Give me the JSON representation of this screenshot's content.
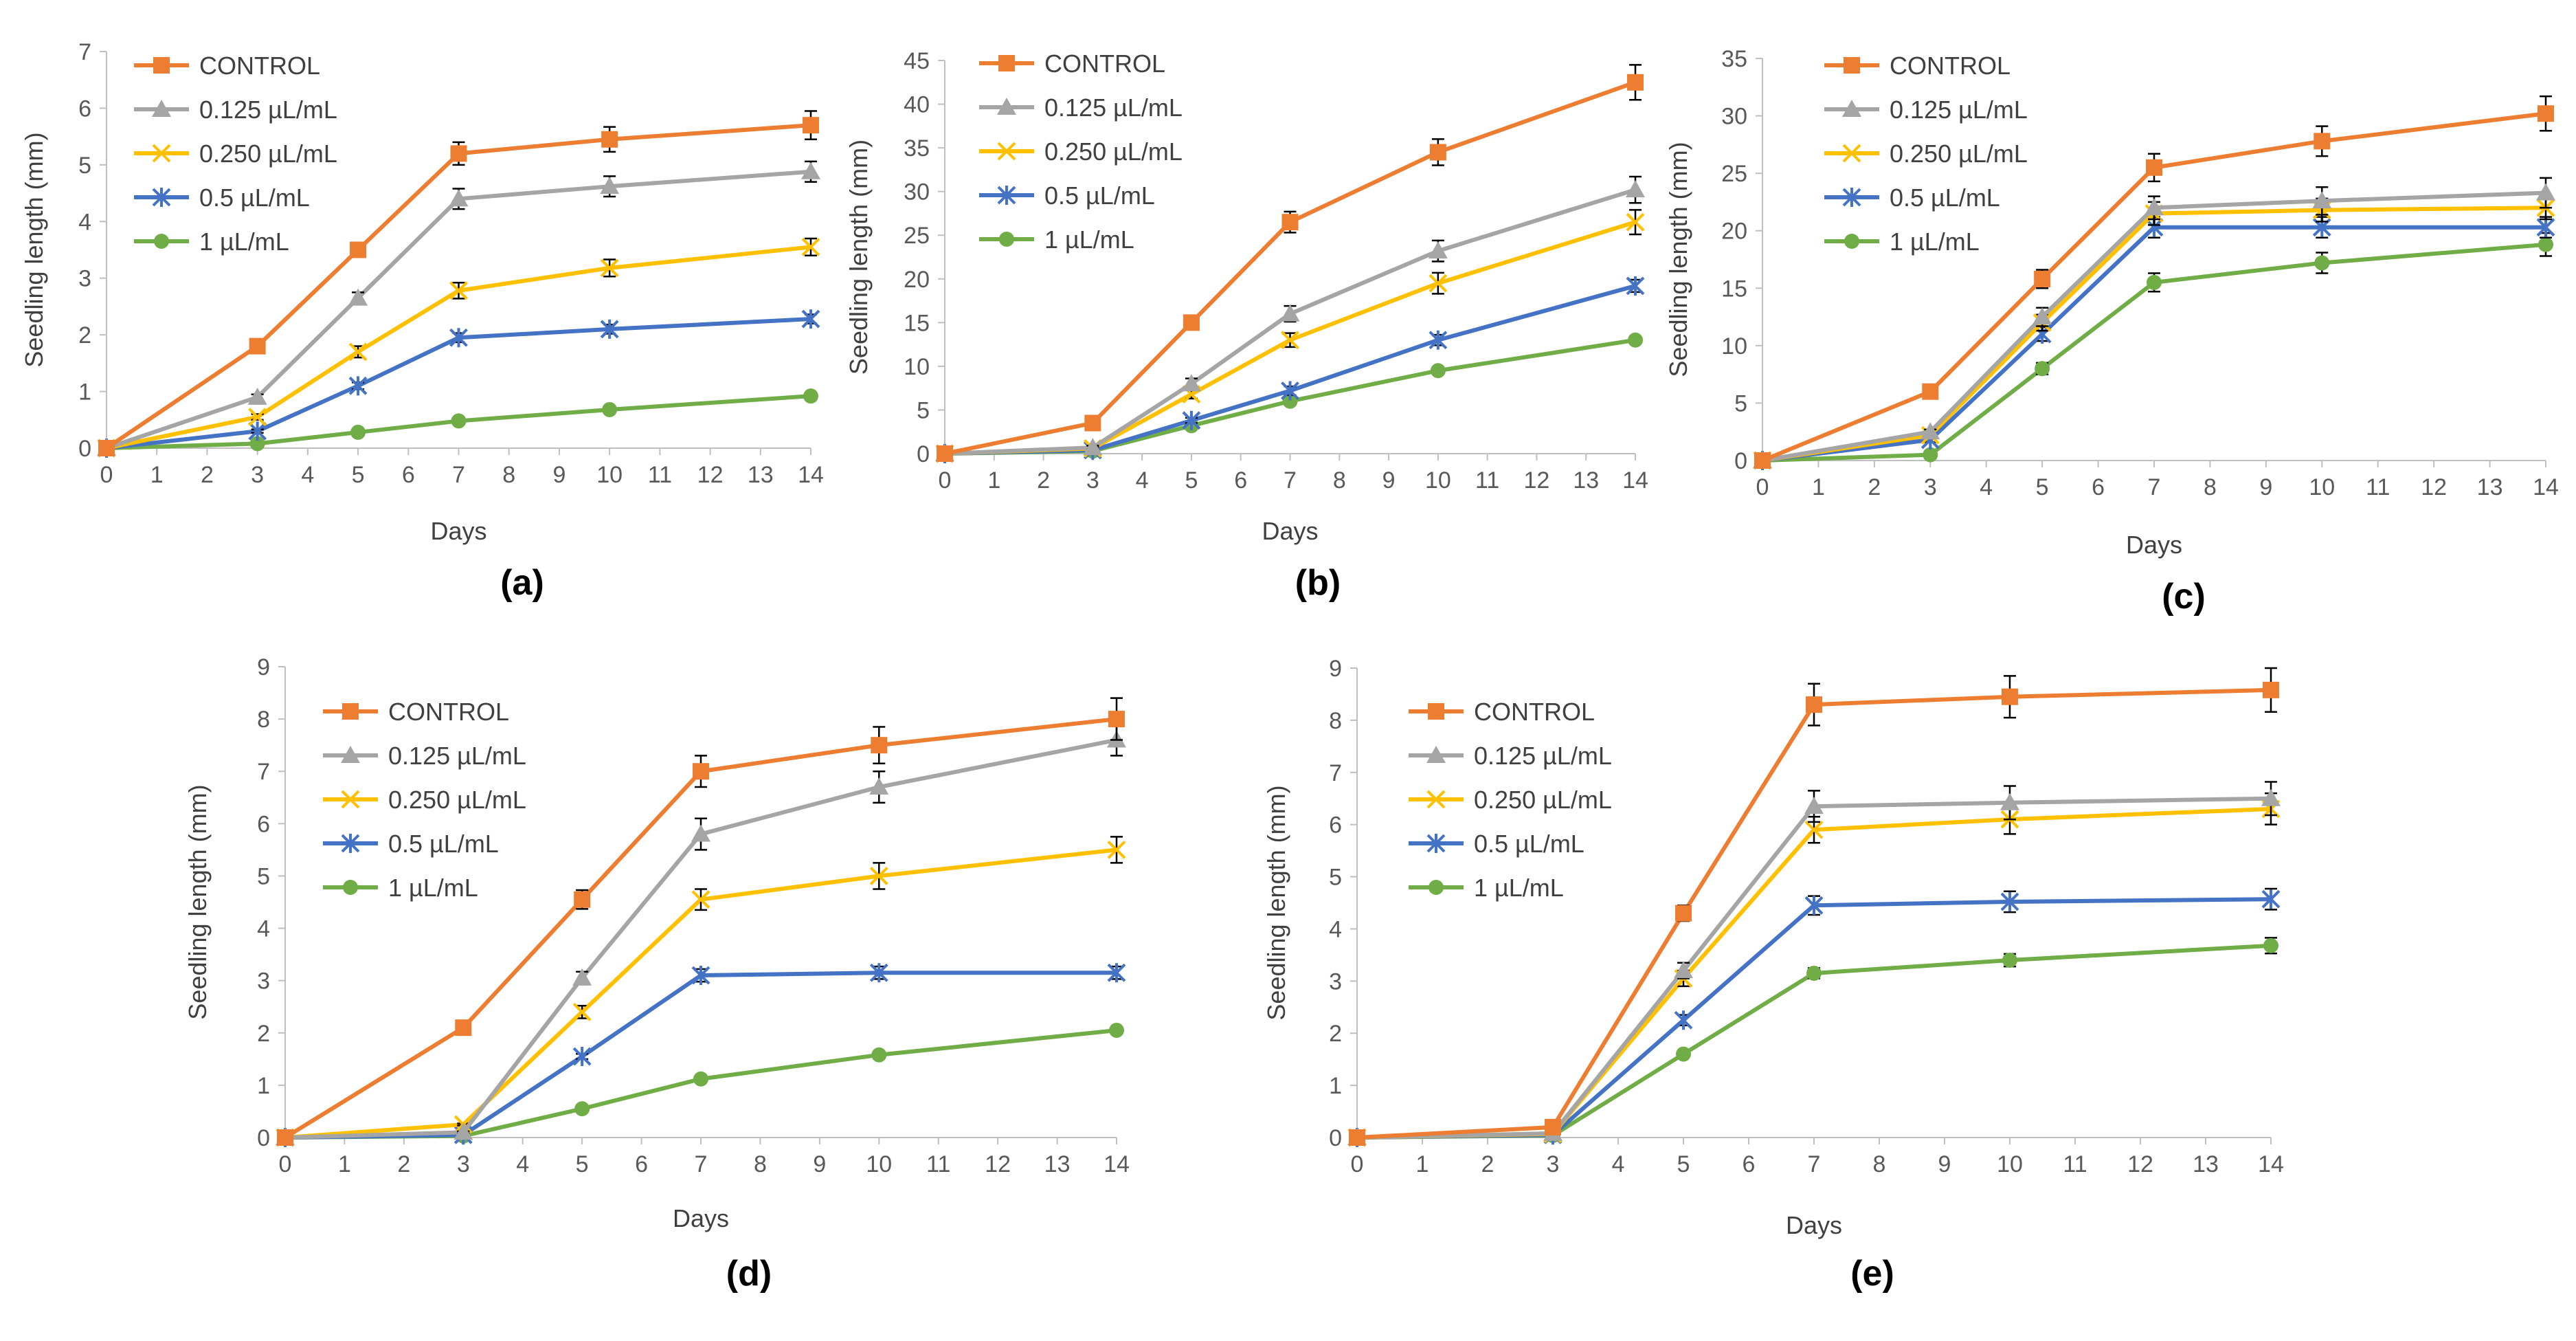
{
  "colors": {
    "control": "#ED7D31",
    "c0125": "#A5A5A5",
    "c0250": "#FFC000",
    "c05": "#4472C4",
    "c1": "#70AD47",
    "axis": "#BFBFBF",
    "text": "#595959"
  },
  "chart_data": [
    {
      "panel_label": "(a)",
      "type": "line",
      "xlabel": "Days",
      "ylabel": "Seedling length (mm)",
      "x_ticks": [
        0,
        1,
        2,
        3,
        4,
        5,
        6,
        7,
        8,
        9,
        10,
        11,
        12,
        13,
        14
      ],
      "y_ticks": [
        0,
        1,
        2,
        3,
        4,
        5,
        6,
        7
      ],
      "ylim": [
        0,
        7
      ],
      "x": [
        0,
        3,
        5,
        7,
        10,
        14
      ],
      "series": [
        {
          "name": "CONTROL",
          "marker": "square",
          "values": [
            0,
            1.8,
            3.5,
            5.2,
            5.45,
            5.7
          ],
          "err": [
            0,
            0.05,
            0.12,
            0.2,
            0.22,
            0.25
          ]
        },
        {
          "name": "0.125 µL/mL",
          "marker": "triangle",
          "values": [
            0,
            0.9,
            2.65,
            4.4,
            4.62,
            4.88
          ],
          "err": [
            0,
            0.05,
            0.1,
            0.18,
            0.18,
            0.18
          ]
        },
        {
          "name": "0.250 µL/mL",
          "marker": "x",
          "values": [
            0,
            0.55,
            1.7,
            2.78,
            3.18,
            3.55
          ],
          "err": [
            0,
            0.05,
            0.1,
            0.14,
            0.15,
            0.15
          ]
        },
        {
          "name": "0.5 µL/mL",
          "marker": "star",
          "values": [
            0,
            0.3,
            1.1,
            1.95,
            2.1,
            2.28
          ],
          "err": [
            0,
            0.03,
            0.06,
            0.08,
            0.08,
            0.08
          ]
        },
        {
          "name": "1 µL/mL",
          "marker": "circle",
          "values": [
            0,
            0.08,
            0.28,
            0.48,
            0.68,
            0.92
          ],
          "err": [
            0,
            0.02,
            0.03,
            0.04,
            0.04,
            0.04
          ]
        }
      ]
    },
    {
      "panel_label": "(b)",
      "type": "line",
      "xlabel": "Days",
      "ylabel": "Seedling length (mm)",
      "x_ticks": [
        0,
        1,
        2,
        3,
        4,
        5,
        6,
        7,
        8,
        9,
        10,
        11,
        12,
        13,
        14
      ],
      "y_ticks": [
        0,
        5,
        10,
        15,
        20,
        25,
        30,
        35,
        40,
        45
      ],
      "ylim": [
        0,
        45
      ],
      "x": [
        0,
        3,
        5,
        7,
        10,
        14
      ],
      "series": [
        {
          "name": "CONTROL",
          "marker": "square",
          "values": [
            0,
            3.5,
            15,
            26.5,
            34.5,
            42.5
          ],
          "err": [
            0,
            0.4,
            0.6,
            1.2,
            1.5,
            2.0
          ]
        },
        {
          "name": "0.125 µL/mL",
          "marker": "triangle",
          "values": [
            0,
            0.7,
            8,
            16,
            23.2,
            30.2
          ],
          "err": [
            0,
            0.2,
            0.6,
            0.9,
            1.2,
            1.5
          ]
        },
        {
          "name": "0.250 µL/mL",
          "marker": "x",
          "values": [
            0,
            0.6,
            6.8,
            13,
            19.5,
            26.5
          ],
          "err": [
            0,
            0.2,
            0.5,
            0.8,
            1.2,
            1.4
          ]
        },
        {
          "name": "0.5 µL/mL",
          "marker": "star",
          "values": [
            0,
            0.4,
            3.8,
            7.2,
            13,
            19.2
          ],
          "err": [
            0,
            0.1,
            0.3,
            0.5,
            0.6,
            0.7
          ]
        },
        {
          "name": "1 µL/mL",
          "marker": "circle",
          "values": [
            0,
            0.3,
            3.2,
            6,
            9.5,
            13
          ],
          "err": [
            0,
            0.1,
            0.2,
            0.3,
            0.4,
            0.4
          ]
        }
      ]
    },
    {
      "panel_label": "(c)",
      "type": "line",
      "xlabel": "Days",
      "ylabel": "Seedling length (mm)",
      "x_ticks": [
        0,
        1,
        2,
        3,
        4,
        5,
        6,
        7,
        8,
        9,
        10,
        11,
        12,
        13,
        14
      ],
      "y_ticks": [
        0,
        5,
        10,
        15,
        20,
        25,
        30,
        35
      ],
      "ylim": [
        0,
        35
      ],
      "x": [
        0,
        3,
        5,
        7,
        10,
        14
      ],
      "series": [
        {
          "name": "CONTROL",
          "marker": "square",
          "values": [
            0,
            6,
            15.8,
            25.5,
            27.8,
            30.2
          ],
          "err": [
            0,
            0.3,
            0.8,
            1.2,
            1.3,
            1.5
          ]
        },
        {
          "name": "0.125 µL/mL",
          "marker": "triangle",
          "values": [
            0,
            2.5,
            12.5,
            22,
            22.6,
            23.3
          ],
          "err": [
            0,
            0.2,
            0.8,
            1.0,
            1.2,
            1.3
          ]
        },
        {
          "name": "0.250 µL/mL",
          "marker": "x",
          "values": [
            0,
            2.2,
            12,
            21.5,
            21.8,
            22
          ],
          "err": [
            0,
            0.2,
            0.7,
            1.0,
            1.0,
            1.0
          ]
        },
        {
          "name": "0.5 µL/mL",
          "marker": "star",
          "values": [
            0,
            1.8,
            11,
            20.3,
            20.3,
            20.3
          ],
          "err": [
            0,
            0.2,
            0.6,
            0.9,
            0.9,
            0.9
          ]
        },
        {
          "name": "1 µL/mL",
          "marker": "circle",
          "values": [
            0,
            0.5,
            8,
            15.5,
            17.2,
            18.8
          ],
          "err": [
            0,
            0.1,
            0.5,
            0.8,
            0.9,
            1.0
          ]
        }
      ]
    },
    {
      "panel_label": "(d)",
      "type": "line",
      "xlabel": "Days",
      "ylabel": "Seedling length (mm)",
      "x_ticks": [
        0,
        1,
        2,
        3,
        4,
        5,
        6,
        7,
        8,
        9,
        10,
        11,
        12,
        13,
        14
      ],
      "y_ticks": [
        0,
        1,
        2,
        3,
        4,
        5,
        6,
        7,
        8,
        9
      ],
      "ylim": [
        0,
        9
      ],
      "x": [
        0,
        3,
        5,
        7,
        10,
        14
      ],
      "series": [
        {
          "name": "CONTROL",
          "marker": "square",
          "values": [
            0,
            2.1,
            4.55,
            7,
            7.5,
            8
          ],
          "err": [
            0,
            0.05,
            0.18,
            0.3,
            0.35,
            0.4
          ]
        },
        {
          "name": "0.125 µL/mL",
          "marker": "triangle",
          "values": [
            0,
            0.1,
            3.05,
            5.8,
            6.7,
            7.6
          ],
          "err": [
            0,
            0.02,
            0.12,
            0.3,
            0.3,
            0.3
          ]
        },
        {
          "name": "0.250 µL/mL",
          "marker": "x",
          "values": [
            0,
            0.25,
            2.4,
            4.55,
            5,
            5.5
          ],
          "err": [
            0,
            0.02,
            0.12,
            0.2,
            0.25,
            0.25
          ]
        },
        {
          "name": "0.5 µL/mL",
          "marker": "star",
          "values": [
            0,
            0.05,
            1.55,
            3.1,
            3.15,
            3.15
          ],
          "err": [
            0,
            0.02,
            0.05,
            0.12,
            0.12,
            0.12
          ]
        },
        {
          "name": "1 µL/mL",
          "marker": "circle",
          "values": [
            0,
            0.03,
            0.55,
            1.12,
            1.58,
            2.05
          ],
          "err": [
            0,
            0.01,
            0.04,
            0.05,
            0.06,
            0.06
          ]
        }
      ]
    },
    {
      "panel_label": "(e)",
      "type": "line",
      "xlabel": "Days",
      "ylabel": "Seedling length (mm)",
      "x_ticks": [
        0,
        1,
        2,
        3,
        4,
        5,
        6,
        7,
        8,
        9,
        10,
        11,
        12,
        13,
        14
      ],
      "y_ticks": [
        0,
        1,
        2,
        3,
        4,
        5,
        6,
        7,
        8,
        9
      ],
      "ylim": [
        0,
        9
      ],
      "x": [
        0,
        3,
        5,
        7,
        10,
        14
      ],
      "series": [
        {
          "name": "CONTROL",
          "marker": "square",
          "values": [
            0,
            0.2,
            4.3,
            8.3,
            8.45,
            8.58
          ],
          "err": [
            0,
            0.03,
            0.15,
            0.4,
            0.4,
            0.42
          ]
        },
        {
          "name": "0.125 µL/mL",
          "marker": "triangle",
          "values": [
            0,
            0.08,
            3.2,
            6.35,
            6.42,
            6.5
          ],
          "err": [
            0,
            0.02,
            0.15,
            0.3,
            0.32,
            0.32
          ]
        },
        {
          "name": "0.250 µL/mL",
          "marker": "x",
          "values": [
            0,
            0.07,
            3.05,
            5.9,
            6.1,
            6.3
          ],
          "err": [
            0,
            0.02,
            0.15,
            0.25,
            0.28,
            0.3
          ]
        },
        {
          "name": "0.5 µL/mL",
          "marker": "star",
          "values": [
            0,
            0.05,
            2.25,
            4.45,
            4.52,
            4.57
          ],
          "err": [
            0,
            0.02,
            0.1,
            0.18,
            0.2,
            0.2
          ]
        },
        {
          "name": "1 µL/mL",
          "marker": "circle",
          "values": [
            0,
            0.04,
            1.6,
            3.15,
            3.4,
            3.68
          ],
          "err": [
            0,
            0.01,
            0.06,
            0.1,
            0.12,
            0.15
          ]
        }
      ]
    }
  ]
}
